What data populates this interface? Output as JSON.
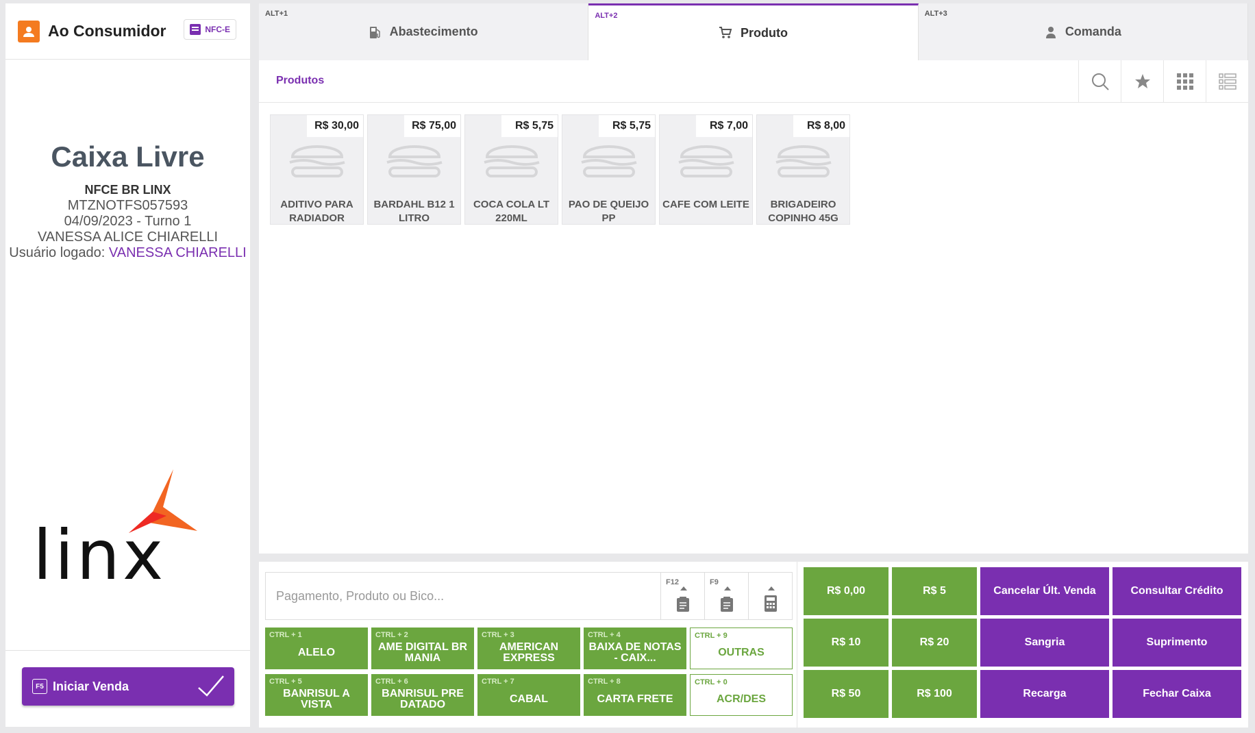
{
  "customer": {
    "name": "Ao Consumidor",
    "doc_type": "NFC-E"
  },
  "status": {
    "title": "Caixa Livre",
    "terminal": "NFCE BR LINX",
    "code": "MTZNOTFS057593",
    "date_shift": "04/09/2023 - Turno 1",
    "operator": "VANESSA ALICE CHIARELLI",
    "logged_label": "Usuário logado:",
    "logged_user": "VANESSA CHIARELLI"
  },
  "logo_text": "linx",
  "start_button": {
    "key": "F5",
    "label": "Iniciar Venda"
  },
  "tabs": [
    {
      "shortcut": "ALT+1",
      "label": "Abastecimento",
      "icon": "fuel-pump-icon"
    },
    {
      "shortcut": "ALT+2",
      "label": "Produto",
      "icon": "cart-icon",
      "active": true
    },
    {
      "shortcut": "ALT+3",
      "label": "Comanda",
      "icon": "person-icon"
    }
  ],
  "products_section": {
    "title": "Produtos"
  },
  "view_buttons": [
    "search-icon",
    "star-icon",
    "grid-icon",
    "list-icon"
  ],
  "products": [
    {
      "price": "R$ 30,00",
      "name": "ADITIVO PARA RADIADOR"
    },
    {
      "price": "R$ 75,00",
      "name": "BARDAHL B12 1 LITRO"
    },
    {
      "price": "R$ 5,75",
      "name": "COCA COLA LT 220ML"
    },
    {
      "price": "R$ 5,75",
      "name": "PAO DE QUEIJO PP"
    },
    {
      "price": "R$ 7,00",
      "name": "CAFE COM LEITE"
    },
    {
      "price": "R$ 8,00",
      "name": "BRIGADEIRO COPINHO 45G"
    }
  ],
  "search": {
    "placeholder": "Pagamento, Produto ou Bico...",
    "value": "",
    "buttons": [
      {
        "key": "F12",
        "icon": "receipt-icon"
      },
      {
        "key": "F9",
        "icon": "receipt-icon"
      },
      {
        "key": "",
        "icon": "calculator-icon"
      }
    ]
  },
  "payments": [
    {
      "key": "CTRL + 1",
      "label": "ALELO"
    },
    {
      "key": "CTRL + 2",
      "label": "AME DIGITAL BR MANIA"
    },
    {
      "key": "CTRL + 3",
      "label": "AMERICAN EXPRESS"
    },
    {
      "key": "CTRL + 4",
      "label": "BAIXA DE NOTAS - CAIX..."
    },
    {
      "key": "CTRL + 9",
      "label": "OUTRAS",
      "outline": true
    },
    {
      "key": "CTRL + 5",
      "label": "BANRISUL A VISTA"
    },
    {
      "key": "CTRL + 6",
      "label": "BANRISUL PRE DATADO"
    },
    {
      "key": "CTRL + 7",
      "label": "CABAL"
    },
    {
      "key": "CTRL + 8",
      "label": "CARTA FRETE"
    },
    {
      "key": "CTRL + 0",
      "label": "ACR/DES",
      "outline": true
    }
  ],
  "quick_actions": [
    {
      "label": "R$ 0,00",
      "color": "green"
    },
    {
      "label": "R$ 5",
      "color": "green"
    },
    {
      "label": "Cancelar Últ. Venda",
      "color": "purple"
    },
    {
      "label": "Consultar Crédito",
      "color": "purple"
    },
    {
      "label": "R$ 10",
      "color": "green"
    },
    {
      "label": "R$ 20",
      "color": "green"
    },
    {
      "label": "Sangria",
      "color": "purple"
    },
    {
      "label": "Suprimento",
      "color": "purple"
    },
    {
      "label": "R$ 50",
      "color": "green"
    },
    {
      "label": "R$ 100",
      "color": "green"
    },
    {
      "label": "Recarga",
      "color": "purple"
    },
    {
      "label": "Fechar Caixa",
      "color": "purple"
    }
  ],
  "colors": {
    "accent": "#7a2fb0",
    "green": "#6ba63f",
    "orange": "#f47b20"
  }
}
